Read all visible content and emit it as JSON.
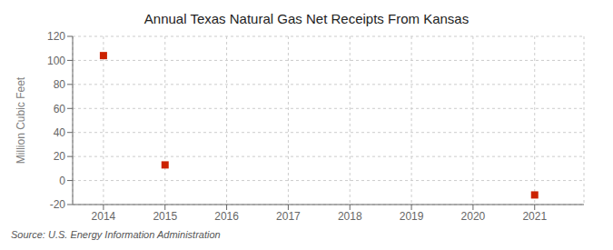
{
  "chart_data": {
    "type": "scatter",
    "title": "Annual Texas Natural Gas Net Receipts From Kansas",
    "ylabel": "Million Cubic Feet",
    "source": "Source: U.S. Energy Information Administration",
    "x": [
      2014,
      2015,
      2016,
      2017,
      2018,
      2019,
      2020,
      2021
    ],
    "values": [
      104,
      13,
      null,
      null,
      null,
      null,
      null,
      -12
    ],
    "color": "#cc2200",
    "marker": "square",
    "xlim": [
      2013.5,
      2021.8
    ],
    "xticks": [
      2014,
      2015,
      2016,
      2017,
      2018,
      2019,
      2020,
      2021
    ],
    "ylim": [
      -20,
      120
    ],
    "yticks": [
      -20,
      0,
      20,
      40,
      60,
      80,
      100,
      120
    ],
    "grid": true
  }
}
